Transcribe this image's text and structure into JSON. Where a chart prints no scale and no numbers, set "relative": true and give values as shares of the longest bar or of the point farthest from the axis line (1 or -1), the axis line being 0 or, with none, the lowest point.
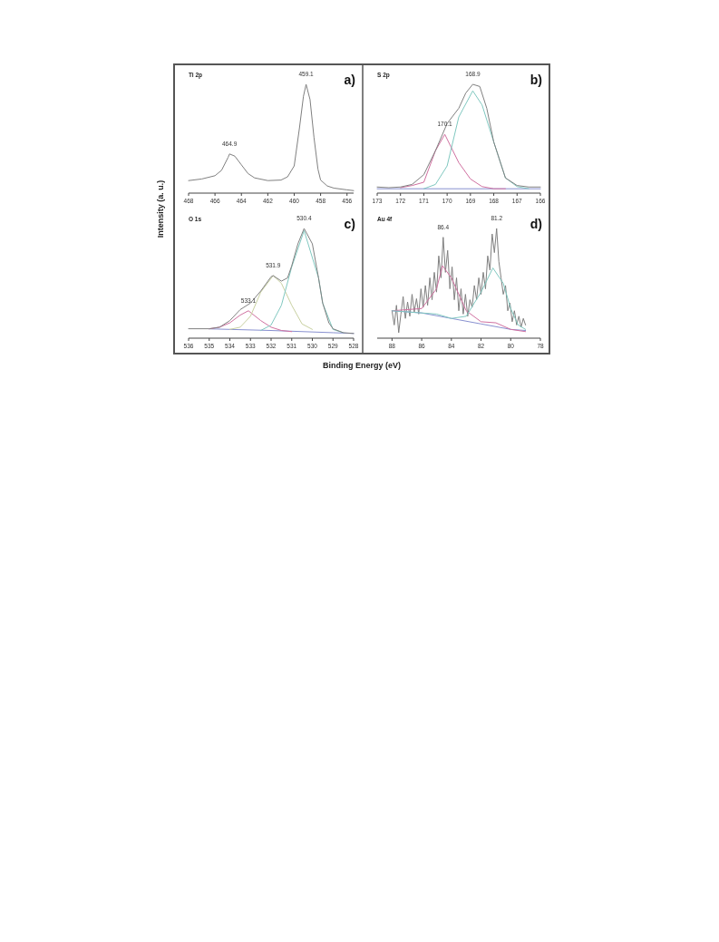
{
  "chart_data": [
    {
      "type": "line",
      "title": "Ti 2p",
      "ylabel": "Intensity (a. u.)",
      "relative": true,
      "xlim": [
        468,
        455.5
      ],
      "xticks": [
        468,
        466,
        464,
        462,
        460,
        458,
        456
      ],
      "annotations": [
        "a)",
        {
          "text": "464.9",
          "x": 464.9,
          "y": 0.36
        },
        {
          "text": "459.1",
          "x": 459.1,
          "y": 1
        }
      ],
      "series": [
        {
          "color": "#808080",
          "x": [
            468,
            467,
            466,
            465.5,
            465,
            464.9,
            464.5,
            464,
            463.5,
            463,
            462,
            461,
            460.5,
            460,
            459.6,
            459.3,
            459.1,
            458.8,
            458.5,
            458.2,
            458,
            457.5,
            457,
            456,
            455.5
          ],
          "values": [
            0.115,
            0.13,
            0.16,
            0.21,
            0.33,
            0.36,
            0.34,
            0.26,
            0.18,
            0.14,
            0.115,
            0.12,
            0.15,
            0.25,
            0.6,
            0.89,
            1,
            0.86,
            0.51,
            0.22,
            0.12,
            0.066,
            0.046,
            0.03,
            0.023
          ]
        }
      ]
    },
    {
      "type": "line",
      "title": "S 2p",
      "relative": true,
      "xlim": [
        173,
        166
      ],
      "xticks": [
        173,
        172,
        171,
        170,
        169,
        168,
        167,
        166
      ],
      "annotations": [
        "b)",
        {
          "text": "170.1",
          "x": 170.1,
          "y": 0.54
        },
        {
          "text": "168.9",
          "x": 168.9,
          "y": 1
        }
      ],
      "series": [
        {
          "color": "#8890d0",
          "x": [
            173,
            166
          ],
          "values": [
            0.04,
            0.04
          ]
        },
        {
          "color": "#d070a0",
          "x": [
            172,
            171.5,
            171,
            170.5,
            170.1,
            169.5,
            169,
            168.5,
            168,
            167.5
          ],
          "values": [
            0.05,
            0.07,
            0.1,
            0.39,
            0.54,
            0.28,
            0.13,
            0.06,
            0.04,
            0.04
          ]
        },
        {
          "color": "#80c8c0",
          "x": [
            171,
            170.5,
            170,
            169.5,
            168.9,
            168.5,
            168,
            167.5,
            167,
            166.5
          ],
          "values": [
            0.04,
            0.08,
            0.25,
            0.7,
            0.94,
            0.81,
            0.47,
            0.14,
            0.06,
            0.04
          ]
        },
        {
          "color": "#808080",
          "x": [
            173,
            172.5,
            172,
            171.5,
            171,
            170.5,
            170,
            169.5,
            169.2,
            168.9,
            168.6,
            168.3,
            168,
            167.5,
            167,
            166.5,
            166
          ],
          "values": [
            0.056,
            0.05,
            0.056,
            0.08,
            0.17,
            0.39,
            0.64,
            0.78,
            0.92,
            1,
            0.98,
            0.78,
            0.47,
            0.14,
            0.07,
            0.056,
            0.056
          ]
        }
      ]
    },
    {
      "type": "line",
      "title": "O 1s",
      "xlabel": "Binding Energy (eV)",
      "relative": true,
      "xlim": [
        536,
        528
      ],
      "xticks": [
        536,
        535,
        534,
        533,
        532,
        531,
        530,
        529,
        528
      ],
      "annotations": [
        "c)",
        {
          "text": "533.1",
          "x": 533.1,
          "y": 0.25
        },
        {
          "text": "531.9",
          "x": 531.9,
          "y": 0.57
        },
        {
          "text": "530.4",
          "x": 530.4,
          "y": 1
        }
      ],
      "series": [
        {
          "color": "#8890d0",
          "x": [
            535,
            532,
            529,
            528
          ],
          "values": [
            0.085,
            0.07,
            0.05,
            0.043
          ]
        },
        {
          "color": "#d070a0",
          "x": [
            535,
            534.5,
            534,
            533.5,
            533.1,
            532.5,
            532,
            531.5,
            531
          ],
          "values": [
            0.085,
            0.1,
            0.14,
            0.21,
            0.25,
            0.16,
            0.1,
            0.07,
            0.06
          ]
        },
        {
          "color": "#c8d0a0",
          "x": [
            534,
            533.5,
            533,
            532.5,
            531.9,
            531.5,
            531,
            530.5,
            530
          ],
          "values": [
            0.08,
            0.1,
            0.2,
            0.42,
            0.57,
            0.5,
            0.3,
            0.13,
            0.08
          ]
        },
        {
          "color": "#80c8c0",
          "x": [
            532.5,
            532,
            531.5,
            531,
            530.4,
            529.7,
            529.5,
            529,
            528.5
          ],
          "values": [
            0.07,
            0.12,
            0.3,
            0.65,
            0.98,
            0.55,
            0.32,
            0.08,
            0.05
          ]
        },
        {
          "color": "#808080",
          "x": [
            536,
            535,
            534.5,
            534,
            533.5,
            533,
            532.5,
            532,
            531.9,
            531.5,
            531.2,
            531,
            530.7,
            530.4,
            530,
            529.7,
            529.5,
            529.2,
            529,
            528.5,
            528
          ],
          "values": [
            0.086,
            0.086,
            0.1,
            0.16,
            0.26,
            0.32,
            0.43,
            0.56,
            0.57,
            0.52,
            0.55,
            0.66,
            0.86,
            1,
            0.86,
            0.55,
            0.32,
            0.14,
            0.086,
            0.05,
            0.043
          ]
        }
      ]
    },
    {
      "type": "line",
      "title": "Au 4f",
      "relative": true,
      "xlim": [
        89,
        78
      ],
      "xticks": [
        88,
        86,
        84,
        82,
        80,
        78
      ],
      "annotations": [
        "d)",
        {
          "text": "86.4",
          "x": 84.55,
          "y": 0.92
        },
        {
          "text": "81.2",
          "x": 80.95,
          "y": 1
        }
      ],
      "series": [
        {
          "color": "#808080",
          "x": [
            88,
            87.85,
            87.7,
            87.55,
            87.4,
            87.25,
            87.1,
            86.95,
            86.8,
            86.65,
            86.5,
            86.35,
            86.2,
            86.05,
            85.9,
            85.75,
            85.6,
            85.45,
            85.3,
            85.15,
            85,
            84.85,
            84.7,
            84.55,
            84.4,
            84.25,
            84.1,
            83.95,
            83.8,
            83.65,
            83.5,
            83.35,
            83.2,
            83.05,
            82.9,
            82.75,
            82.6,
            82.45,
            82.3,
            82.15,
            82,
            81.85,
            81.7,
            81.55,
            81.4,
            81.25,
            81.1,
            80.95,
            80.8,
            80.65,
            80.5,
            80.35,
            80.2,
            80.05,
            79.9,
            79.75,
            79.6,
            79.45,
            79.3,
            79.15,
            79
          ],
          "values": [
            0.25,
            0.12,
            0.3,
            0.05,
            0.22,
            0.38,
            0.18,
            0.33,
            0.2,
            0.4,
            0.24,
            0.36,
            0.22,
            0.45,
            0.28,
            0.48,
            0.3,
            0.55,
            0.35,
            0.6,
            0.42,
            0.75,
            0.55,
            0.92,
            0.6,
            0.8,
            0.45,
            0.65,
            0.35,
            0.55,
            0.25,
            0.45,
            0.22,
            0.4,
            0.2,
            0.35,
            0.28,
            0.48,
            0.35,
            0.55,
            0.4,
            0.6,
            0.45,
            0.75,
            0.62,
            0.95,
            0.78,
            1,
            0.7,
            0.55,
            0.4,
            0.48,
            0.25,
            0.32,
            0.15,
            0.25,
            0.12,
            0.2,
            0.1,
            0.18,
            0.12
          ]
        },
        {
          "color": "#8890d0",
          "x": [
            88,
            86,
            84,
            82,
            80,
            79
          ],
          "values": [
            0.25,
            0.23,
            0.18,
            0.13,
            0.08,
            0.07
          ]
        },
        {
          "color": "#d070a0",
          "x": [
            88,
            86,
            85,
            84.6,
            84,
            83,
            82,
            81,
            80,
            79
          ],
          "values": [
            0.25,
            0.27,
            0.45,
            0.66,
            0.55,
            0.25,
            0.15,
            0.14,
            0.08,
            0.06
          ]
        },
        {
          "color": "#80c8c0",
          "x": [
            88,
            86,
            85,
            84,
            83,
            82,
            81.2,
            80.5,
            80,
            79.5,
            79
          ],
          "values": [
            0.25,
            0.23,
            0.22,
            0.18,
            0.2,
            0.42,
            0.64,
            0.5,
            0.27,
            0.12,
            0.08
          ]
        }
      ]
    }
  ]
}
